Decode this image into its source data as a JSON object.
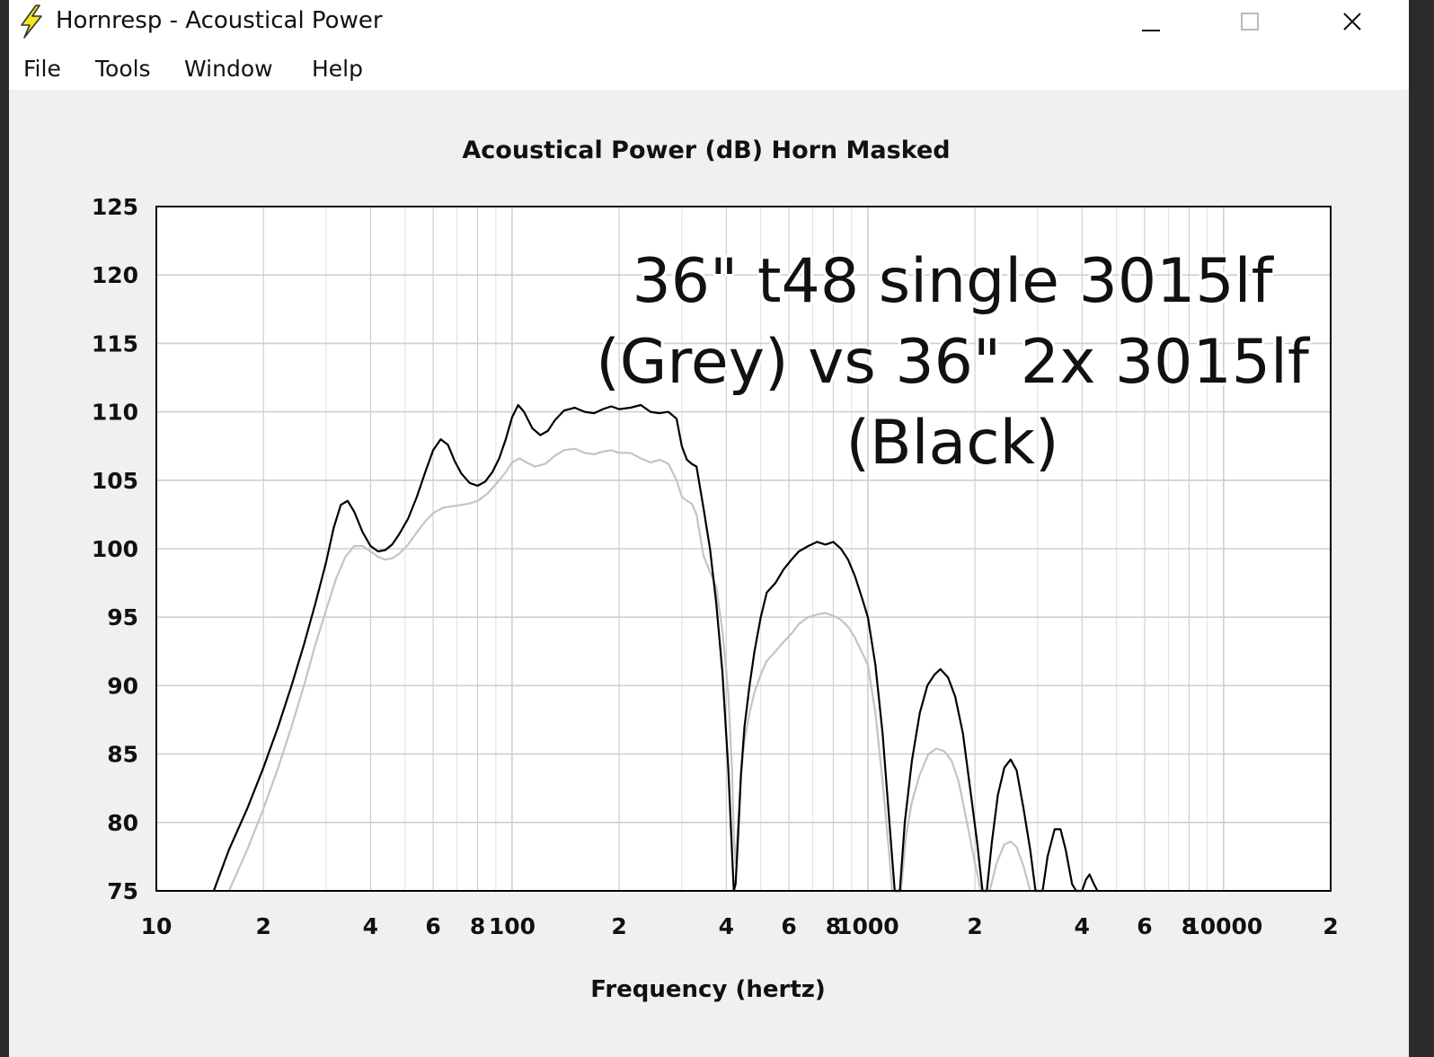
{
  "window": {
    "title": "Hornresp - Acoustical Power",
    "app_icon": "lightning-bolt-icon",
    "controls": [
      "minimize-icon",
      "maximize-icon",
      "close-icon"
    ]
  },
  "menu": {
    "items": [
      "File",
      "Tools",
      "Window",
      "Help"
    ]
  },
  "chart_data": {
    "type": "line",
    "title": "Acoustical Power (dB)    Horn    Masked",
    "xlabel": "Frequency (hertz)",
    "ylabel": "",
    "x_scale": "log",
    "xlim": [
      10,
      20000
    ],
    "ylim": [
      75,
      125
    ],
    "grid": true,
    "yticks": [
      "125",
      "120",
      "115",
      "110",
      "105",
      "100",
      "95",
      "90",
      "85",
      "80",
      "75"
    ],
    "xticks": [
      {
        "value": 10,
        "label": "10"
      },
      {
        "value": 20,
        "label": "2"
      },
      {
        "value": 40,
        "label": "4"
      },
      {
        "value": 60,
        "label": "6"
      },
      {
        "value": 80,
        "label": "8"
      },
      {
        "value": 100,
        "label": "100"
      },
      {
        "value": 200,
        "label": "2"
      },
      {
        "value": 400,
        "label": "4"
      },
      {
        "value": 600,
        "label": "6"
      },
      {
        "value": 800,
        "label": "8"
      },
      {
        "value": 1000,
        "label": "1000"
      },
      {
        "value": 2000,
        "label": "2"
      },
      {
        "value": 4000,
        "label": "4"
      },
      {
        "value": 6000,
        "label": "6"
      },
      {
        "value": 8000,
        "label": "8"
      },
      {
        "value": 10000,
        "label": "10000"
      },
      {
        "value": 20000,
        "label": "2"
      }
    ],
    "annotation": [
      "36\" t48 single 3015lf",
      "(Grey) vs 36\" 2x 3015lf",
      "(Black)"
    ],
    "series": [
      {
        "color": "#000000",
        "points": [
          [
            14.5,
            75
          ],
          [
            16,
            78
          ],
          [
            18,
            81
          ],
          [
            20,
            84
          ],
          [
            22,
            87
          ],
          [
            24,
            90
          ],
          [
            26,
            93
          ],
          [
            28,
            96
          ],
          [
            30,
            99
          ],
          [
            31.5,
            101.5
          ],
          [
            33,
            103.2
          ],
          [
            34.5,
            103.5
          ],
          [
            36,
            102.7
          ],
          [
            38,
            101.2
          ],
          [
            40,
            100.2
          ],
          [
            42,
            99.8
          ],
          [
            44,
            99.9
          ],
          [
            46,
            100.3
          ],
          [
            48,
            101
          ],
          [
            51,
            102.2
          ],
          [
            54,
            103.8
          ],
          [
            57,
            105.6
          ],
          [
            60,
            107.2
          ],
          [
            63,
            108
          ],
          [
            66,
            107.6
          ],
          [
            69,
            106.4
          ],
          [
            72,
            105.5
          ],
          [
            76,
            104.8
          ],
          [
            80,
            104.6
          ],
          [
            84,
            104.9
          ],
          [
            88,
            105.6
          ],
          [
            92,
            106.6
          ],
          [
            96,
            108
          ],
          [
            100,
            109.6
          ],
          [
            104,
            110.5
          ],
          [
            108,
            110
          ],
          [
            114,
            108.8
          ],
          [
            120,
            108.3
          ],
          [
            126,
            108.6
          ],
          [
            132,
            109.4
          ],
          [
            140,
            110.1
          ],
          [
            150,
            110.3
          ],
          [
            160,
            110
          ],
          [
            170,
            109.9
          ],
          [
            180,
            110.2
          ],
          [
            190,
            110.4
          ],
          [
            200,
            110.2
          ],
          [
            215,
            110.3
          ],
          [
            230,
            110.5
          ],
          [
            245,
            110
          ],
          [
            260,
            109.9
          ],
          [
            275,
            110
          ],
          [
            290,
            109.5
          ],
          [
            300,
            107.5
          ],
          [
            310,
            106.5
          ],
          [
            320,
            106.2
          ],
          [
            330,
            106
          ],
          [
            345,
            103
          ],
          [
            360,
            100
          ],
          [
            375,
            96
          ],
          [
            390,
            91
          ],
          [
            405,
            84
          ],
          [
            415,
            78
          ],
          [
            420,
            75
          ],
          [
            425,
            75.5
          ],
          [
            432,
            79
          ],
          [
            440,
            83.5
          ],
          [
            450,
            87
          ],
          [
            465,
            90
          ],
          [
            480,
            92.5
          ],
          [
            500,
            95
          ],
          [
            520,
            96.8
          ],
          [
            550,
            97.5
          ],
          [
            580,
            98.5
          ],
          [
            610,
            99.2
          ],
          [
            640,
            99.8
          ],
          [
            680,
            100.2
          ],
          [
            720,
            100.5
          ],
          [
            760,
            100.3
          ],
          [
            800,
            100.5
          ],
          [
            840,
            100
          ],
          [
            880,
            99.2
          ],
          [
            920,
            98
          ],
          [
            960,
            96.5
          ],
          [
            1000,
            95
          ],
          [
            1050,
            91.5
          ],
          [
            1100,
            86.5
          ],
          [
            1150,
            80
          ],
          [
            1190,
            75
          ],
          [
            1230,
            75
          ],
          [
            1270,
            80
          ],
          [
            1330,
            84.5
          ],
          [
            1400,
            88
          ],
          [
            1470,
            90
          ],
          [
            1540,
            90.8
          ],
          [
            1600,
            91.2
          ],
          [
            1680,
            90.6
          ],
          [
            1760,
            89.2
          ],
          [
            1850,
            86.5
          ],
          [
            1950,
            82
          ],
          [
            2030,
            78.5
          ],
          [
            2100,
            75
          ],
          [
            2160,
            75
          ],
          [
            2230,
            78.5
          ],
          [
            2320,
            82
          ],
          [
            2420,
            84
          ],
          [
            2520,
            84.6
          ],
          [
            2620,
            83.8
          ],
          [
            2740,
            81
          ],
          [
            2860,
            78
          ],
          [
            2960,
            75
          ],
          [
            3100,
            75
          ],
          [
            3200,
            77.5
          ],
          [
            3350,
            79.5
          ],
          [
            3480,
            79.5
          ],
          [
            3600,
            78
          ],
          [
            3750,
            75.5
          ],
          [
            3850,
            75
          ],
          [
            4000,
            75
          ],
          [
            4100,
            75.8
          ],
          [
            4200,
            76.2
          ],
          [
            4320,
            75.5
          ],
          [
            4420,
            75
          ]
        ]
      },
      {
        "color": "#c4c4c4",
        "points": [
          [
            16,
            75
          ],
          [
            18,
            78
          ],
          [
            20,
            81
          ],
          [
            22,
            84
          ],
          [
            24,
            87
          ],
          [
            26,
            90
          ],
          [
            28,
            93
          ],
          [
            30,
            95.5
          ],
          [
            32,
            97.8
          ],
          [
            34,
            99.4
          ],
          [
            36,
            100.2
          ],
          [
            38,
            100.2
          ],
          [
            40,
            99.8
          ],
          [
            42,
            99.4
          ],
          [
            44,
            99.2
          ],
          [
            46,
            99.3
          ],
          [
            48,
            99.6
          ],
          [
            51,
            100.3
          ],
          [
            54,
            101.2
          ],
          [
            57,
            102
          ],
          [
            60,
            102.6
          ],
          [
            64,
            103
          ],
          [
            68,
            103.1
          ],
          [
            72,
            103.2
          ],
          [
            76,
            103.3
          ],
          [
            80,
            103.5
          ],
          [
            85,
            104
          ],
          [
            90,
            104.7
          ],
          [
            96,
            105.6
          ],
          [
            100,
            106.3
          ],
          [
            105,
            106.6
          ],
          [
            110,
            106.3
          ],
          [
            116,
            106
          ],
          [
            124,
            106.2
          ],
          [
            132,
            106.8
          ],
          [
            140,
            107.2
          ],
          [
            150,
            107.3
          ],
          [
            160,
            107
          ],
          [
            170,
            106.9
          ],
          [
            180,
            107.1
          ],
          [
            190,
            107.2
          ],
          [
            200,
            107
          ],
          [
            215,
            107
          ],
          [
            230,
            106.6
          ],
          [
            245,
            106.3
          ],
          [
            260,
            106.5
          ],
          [
            275,
            106.2
          ],
          [
            290,
            105
          ],
          [
            300,
            103.8
          ],
          [
            310,
            103.5
          ],
          [
            320,
            103.3
          ],
          [
            330,
            102.5
          ],
          [
            345,
            99.5
          ],
          [
            360,
            98.3
          ],
          [
            375,
            97.2
          ],
          [
            390,
            94
          ],
          [
            405,
            89.5
          ],
          [
            415,
            84
          ],
          [
            420,
            79
          ],
          [
            425,
            77
          ],
          [
            432,
            80
          ],
          [
            440,
            83.5
          ],
          [
            450,
            86
          ],
          [
            465,
            88
          ],
          [
            480,
            89.5
          ],
          [
            500,
            90.8
          ],
          [
            520,
            91.8
          ],
          [
            550,
            92.5
          ],
          [
            580,
            93.2
          ],
          [
            610,
            93.8
          ],
          [
            640,
            94.5
          ],
          [
            680,
            95
          ],
          [
            720,
            95.2
          ],
          [
            760,
            95.3
          ],
          [
            800,
            95.1
          ],
          [
            840,
            94.8
          ],
          [
            880,
            94.3
          ],
          [
            920,
            93.5
          ],
          [
            960,
            92.5
          ],
          [
            1000,
            91.5
          ],
          [
            1050,
            88
          ],
          [
            1100,
            83
          ],
          [
            1150,
            77.5
          ],
          [
            1170,
            75
          ],
          [
            1240,
            75
          ],
          [
            1280,
            79
          ],
          [
            1330,
            81.5
          ],
          [
            1400,
            83.5
          ],
          [
            1480,
            85
          ],
          [
            1560,
            85.4
          ],
          [
            1640,
            85.2
          ],
          [
            1720,
            84.5
          ],
          [
            1800,
            83
          ],
          [
            1900,
            80
          ],
          [
            2000,
            77
          ],
          [
            2080,
            75
          ],
          [
            2200,
            75
          ],
          [
            2300,
            77
          ],
          [
            2420,
            78.4
          ],
          [
            2520,
            78.6
          ],
          [
            2620,
            78.2
          ],
          [
            2740,
            76.8
          ],
          [
            2860,
            75
          ]
        ]
      }
    ]
  }
}
